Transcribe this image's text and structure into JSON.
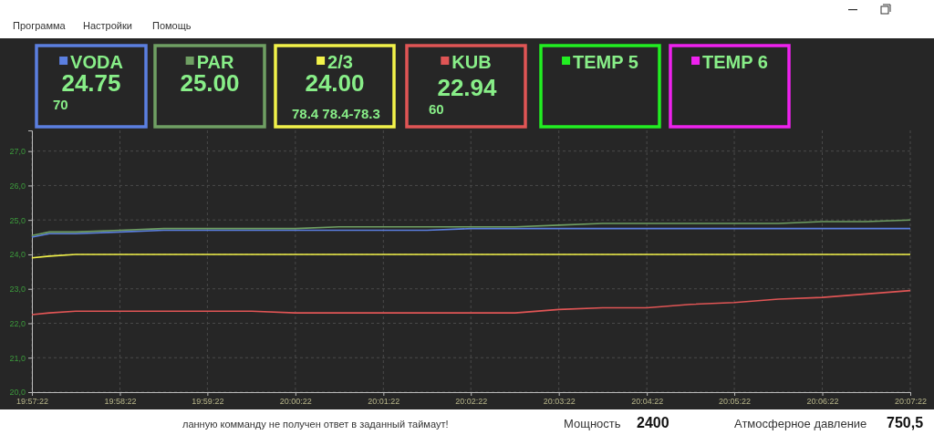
{
  "chart_data": {
    "type": "line",
    "x": [
      19.9561,
      19.9594,
      19.9644,
      19.9728,
      19.9811,
      19.9894,
      19.9978,
      20.0061,
      20.0144,
      20.0228,
      20.0311,
      20.0394,
      20.0478,
      20.0561,
      20.0644,
      20.0728,
      20.0811,
      20.0894,
      20.0978,
      20.1061,
      20.1144,
      20.1228
    ],
    "series": [
      {
        "name": "VODA",
        "color": "#5b7fe0",
        "values": [
          24.5,
          24.6,
          24.6,
          24.65,
          24.7,
          24.7,
          24.7,
          24.7,
          24.7,
          24.7,
          24.7,
          24.75,
          24.75,
          24.75,
          24.75,
          24.75,
          24.75,
          24.75,
          24.75,
          24.75,
          24.75,
          24.75
        ]
      },
      {
        "name": "PAR",
        "color": "#6f9f63",
        "values": [
          24.55,
          24.65,
          24.65,
          24.7,
          24.75,
          24.75,
          24.75,
          24.75,
          24.8,
          24.8,
          24.8,
          24.8,
          24.8,
          24.85,
          24.9,
          24.9,
          24.9,
          24.9,
          24.9,
          24.95,
          24.95,
          25.0
        ]
      },
      {
        "name": "2/3",
        "color": "#f2f24a",
        "values": [
          23.9,
          23.95,
          24.0,
          24.0,
          24.0,
          24.0,
          24.0,
          24.0,
          24.0,
          24.0,
          24.0,
          24.0,
          24.0,
          24.0,
          24.0,
          24.0,
          24.0,
          24.0,
          24.0,
          24.0,
          24.0,
          24.0
        ]
      },
      {
        "name": "KUB",
        "color": "#e05555",
        "values": [
          22.25,
          22.3,
          22.35,
          22.35,
          22.35,
          22.35,
          22.35,
          22.3,
          22.3,
          22.3,
          22.3,
          22.3,
          22.3,
          22.4,
          22.45,
          22.45,
          22.55,
          22.6,
          22.7,
          22.75,
          22.85,
          22.95
        ]
      },
      {
        "name": "TEMP 5",
        "color": "#22ee22",
        "values": [
          null,
          null,
          null,
          null,
          null,
          null,
          null,
          null,
          null,
          null,
          null,
          null,
          null,
          null,
          null,
          null,
          null,
          null,
          null,
          null,
          null,
          null
        ]
      },
      {
        "name": "TEMP 6",
        "color": "#ee22ee",
        "values": [
          null,
          null,
          null,
          null,
          null,
          null,
          null,
          null,
          null,
          null,
          null,
          null,
          null,
          null,
          null,
          null,
          null,
          null,
          null,
          null,
          null,
          null
        ]
      }
    ],
    "xlim": [
      19.9561,
      20.1228
    ],
    "xticks": [
      {
        "value": 19.9561,
        "label": "19:57:22"
      },
      {
        "value": 19.9728,
        "label": "19:58:22"
      },
      {
        "value": 19.9894,
        "label": "19:59:22"
      },
      {
        "value": 20.0061,
        "label": "20:00:22"
      },
      {
        "value": 20.0228,
        "label": "20:01:22"
      },
      {
        "value": 20.0394,
        "label": "20:02:22"
      },
      {
        "value": 20.0561,
        "label": "20:03:22"
      },
      {
        "value": 20.0728,
        "label": "20:04:22"
      },
      {
        "value": 20.0894,
        "label": "20:05:22"
      },
      {
        "value": 20.1061,
        "label": "20:06:22"
      },
      {
        "value": 20.1228,
        "label": "20:07:22"
      }
    ],
    "ylim": [
      20,
      27.6
    ],
    "yticks": [
      {
        "value": 20,
        "label": "20,0"
      },
      {
        "value": 21,
        "label": "21,0"
      },
      {
        "value": 22,
        "label": "22,0"
      },
      {
        "value": 23,
        "label": "23,0"
      },
      {
        "value": 24,
        "label": "24,0"
      },
      {
        "value": 25,
        "label": "25,0"
      },
      {
        "value": 26,
        "label": "26,0"
      },
      {
        "value": 27,
        "label": "27,0"
      }
    ],
    "grid": true,
    "legend": "top",
    "marker": "none",
    "line_style": "solid",
    "annotations": [
      "24.75",
      "70",
      "25.00",
      "24.00",
      "78.4 78.4-78.3",
      "22.94",
      "60",
      "Программа",
      "Настройки",
      "Помощь",
      "ланную комманду не получен ответ в заданный таймаут!",
      "Мощность",
      "2400",
      "Атмосферное давление",
      "750,5"
    ]
  }
}
